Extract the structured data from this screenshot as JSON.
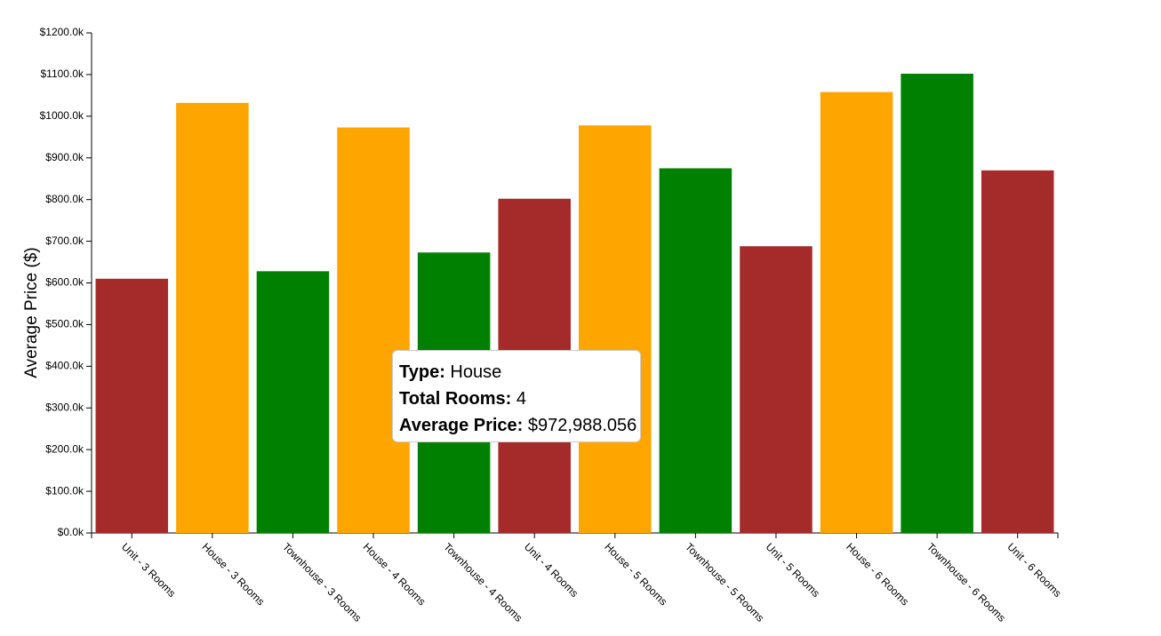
{
  "chart_data": {
    "type": "bar",
    "title": "",
    "xlabel": "",
    "ylabel": "Average Price ($)",
    "ylim": [
      0,
      1200000
    ],
    "y_ticks": [
      {
        "value": 0,
        "label": "$0.0k"
      },
      {
        "value": 100000,
        "label": "$100.0k"
      },
      {
        "value": 200000,
        "label": "$200.0k"
      },
      {
        "value": 300000,
        "label": "$300.0k"
      },
      {
        "value": 400000,
        "label": "$400.0k"
      },
      {
        "value": 500000,
        "label": "$500.0k"
      },
      {
        "value": 600000,
        "label": "$600.0k"
      },
      {
        "value": 700000,
        "label": "$700.0k"
      },
      {
        "value": 800000,
        "label": "$800.0k"
      },
      {
        "value": 900000,
        "label": "$900.0k"
      },
      {
        "value": 1000000,
        "label": "$1000.0k"
      },
      {
        "value": 1100000,
        "label": "$1100.0k"
      },
      {
        "value": 1200000,
        "label": "$1200.0k"
      }
    ],
    "grid": false,
    "categories": [
      "Unit - 3 Rooms",
      "House - 3 Rooms",
      "Townhouse - 3 Rooms",
      "House - 4 Rooms",
      "Townhouse - 4 Rooms",
      "Unit - 4 Rooms",
      "House - 5 Rooms",
      "Townhouse - 5 Rooms",
      "Unit - 5 Rooms",
      "House - 6 Rooms",
      "Townhouse - 6 Rooms",
      "Unit - 6 Rooms"
    ],
    "values": [
      610000,
      1032000,
      628000,
      972988.056,
      673000,
      802000,
      978000,
      875000,
      688000,
      1058000,
      1102000,
      870000
    ],
    "types": [
      "Unit",
      "House",
      "Townhouse",
      "House",
      "Townhouse",
      "Unit",
      "House",
      "Townhouse",
      "Unit",
      "House",
      "Townhouse",
      "Unit"
    ],
    "colors": {
      "Unit": "#a52a2a",
      "House": "#ffa500",
      "Townhouse": "#008000"
    }
  },
  "tooltip": {
    "type_label": "Type:",
    "type_value": "House",
    "rooms_label": "Total Rooms:",
    "rooms_value": "4",
    "price_label": "Average Price:",
    "price_value": "$972,988.056"
  }
}
